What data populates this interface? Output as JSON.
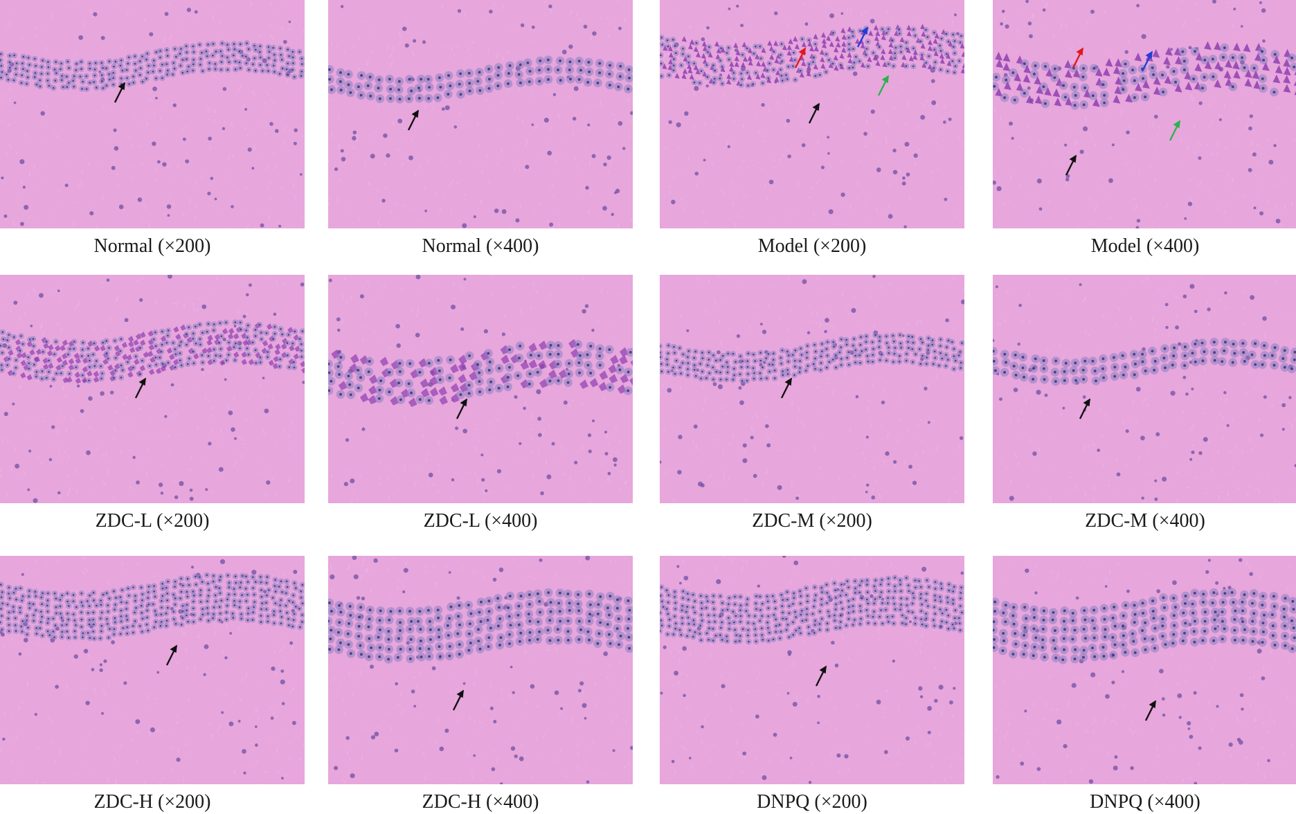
{
  "panels": [
    {
      "caption": "Normal (×200)",
      "band": "thin",
      "zoom": 200,
      "arrows": [
        "black"
      ]
    },
    {
      "caption": "Normal (×400)",
      "band": "thin",
      "zoom": 400,
      "arrows": [
        "black"
      ]
    },
    {
      "caption": "Model (×200)",
      "band": "damaged",
      "zoom": 200,
      "arrows": [
        "red",
        "blue",
        "green",
        "black"
      ]
    },
    {
      "caption": "Model (×400)",
      "band": "damaged",
      "zoom": 400,
      "arrows": [
        "red",
        "blue",
        "green",
        "black"
      ]
    },
    {
      "caption": "ZDC-L (×200)",
      "band": "vacuolated",
      "zoom": 200,
      "arrows": [
        "black"
      ]
    },
    {
      "caption": "ZDC-L (×400)",
      "band": "vacuolated",
      "zoom": 400,
      "arrows": [
        "black"
      ]
    },
    {
      "caption": "ZDC-M (×200)",
      "band": "thin",
      "zoom": 200,
      "arrows": [
        "black"
      ]
    },
    {
      "caption": "ZDC-M (×400)",
      "band": "thin",
      "zoom": 400,
      "arrows": [
        "black"
      ]
    },
    {
      "caption": "ZDC-H (×200)",
      "band": "thick",
      "zoom": 200,
      "arrows": [
        "black"
      ]
    },
    {
      "caption": "ZDC-H (×400)",
      "band": "thick",
      "zoom": 400,
      "arrows": [
        "black"
      ]
    },
    {
      "caption": "DNPQ (×200)",
      "band": "thick",
      "zoom": 200,
      "arrows": [
        "black"
      ]
    },
    {
      "caption": "DNPQ (×400)",
      "band": "thick",
      "zoom": 400,
      "arrows": [
        "black"
      ]
    }
  ],
  "colors": {
    "tissue": "#e7a6dc",
    "tissue_light": "#eeb6e6",
    "nucleus": "#8a7fc4",
    "dark_cell": "#8e3fb0",
    "arrow_black": "#111111",
    "arrow_red": "#e01818",
    "arrow_blue": "#1f3fd6",
    "arrow_green": "#2bb24c"
  },
  "icons": [
    "arrow-icon"
  ]
}
